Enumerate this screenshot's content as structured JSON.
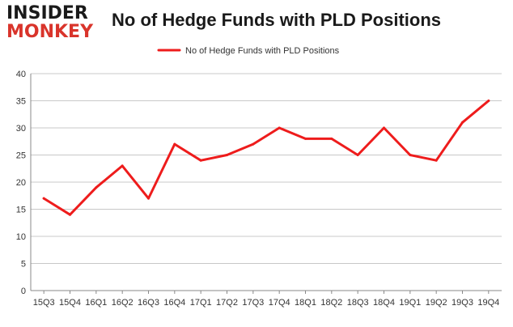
{
  "logo": {
    "top": "INSIDER",
    "bottom": "MONKEY"
  },
  "colors": {
    "series": "#ee1c1c",
    "grid": "#c8c8c8",
    "axis": "#888888",
    "logo_red": "#d9342b"
  },
  "chart_data": {
    "type": "line",
    "title": "No of Hedge Funds with PLD Positions",
    "categories": [
      "15Q3",
      "15Q4",
      "16Q1",
      "16Q2",
      "16Q3",
      "16Q4",
      "17Q1",
      "17Q2",
      "17Q3",
      "17Q4",
      "18Q1",
      "18Q2",
      "18Q3",
      "18Q4",
      "19Q1",
      "19Q2",
      "19Q3",
      "19Q4"
    ],
    "series": [
      {
        "name": "No of Hedge Funds with PLD Positions",
        "values": [
          17,
          14,
          19,
          23,
          17,
          27,
          24,
          25,
          27,
          30,
          28,
          28,
          25,
          30,
          25,
          24,
          31,
          35
        ]
      }
    ],
    "ylim": [
      0,
      40
    ],
    "yticks": [
      0,
      5,
      10,
      15,
      20,
      25,
      30,
      35,
      40
    ],
    "grid": "horizontal",
    "legend": "top-center"
  }
}
